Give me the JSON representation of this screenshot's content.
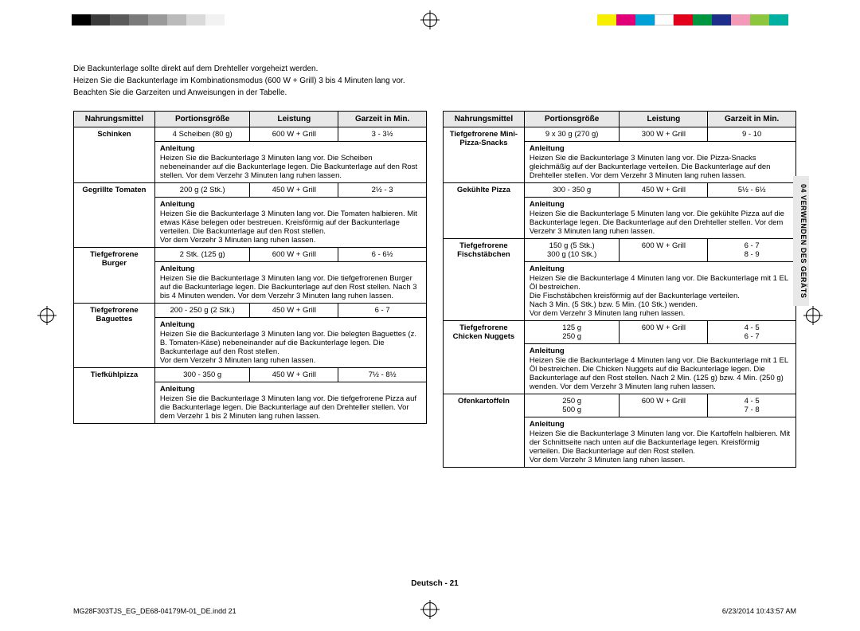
{
  "colorbar_left": [
    "#000000",
    "#3a3a3a",
    "#5a5a5a",
    "#7a7a7a",
    "#9a9a9a",
    "#bababa",
    "#dadada",
    "#f2f2f2"
  ],
  "colorbar_right": [
    "#f8ef00",
    "#e20079",
    "#00a1d6",
    "#ffffff",
    "#e2001a",
    "#009640",
    "#1d2e8a",
    "#f29ab8",
    "#8cc63f",
    "#00b0a0"
  ],
  "intro": [
    "Die Backunterlage sollte direkt auf dem Drehteller vorgeheizt werden.",
    "Heizen Sie die Backunterlage im Kombinationsmodus (600 W + Grill) 3 bis 4 Minuten lang vor.",
    "Beachten Sie die Garzeiten und Anweisungen in der Tabelle."
  ],
  "headers": {
    "food": "Nahrungsmittel",
    "portion": "Portionsgröße",
    "power": "Leistung",
    "time": "Garzeit in Min."
  },
  "instr_label": "Anleitung",
  "left_rows": [
    {
      "food": "Schinken",
      "portion": "4 Scheiben (80 g)",
      "power": "600 W + Grill",
      "time": "3 - 3½",
      "instr": "Heizen Sie die Backunterlage 3 Minuten lang vor. Die Scheiben nebeneinander auf die Backunterlage legen. Die Backunterlage auf den Rost stellen. Vor dem Verzehr 3 Minuten lang ruhen lassen."
    },
    {
      "food": "Gegrillte Tomaten",
      "portion": "200 g (2 Stk.)",
      "power": "450 W + Grill",
      "time": "2½ - 3",
      "instr": "Heizen Sie die Backunterlage 3 Minuten lang vor. Die Tomaten halbieren. Mit etwas Käse belegen oder bestreuen. Kreisförmig auf der Backunterlage verteilen. Die Backunterlage auf den Rost stellen.\nVor dem Verzehr 3 Minuten lang ruhen lassen."
    },
    {
      "food": "Tiefgefrorene Burger",
      "portion": "2 Stk. (125 g)",
      "power": "600 W + Grill",
      "time": "6 - 6½",
      "instr": "Heizen Sie die Backunterlage 3 Minuten lang vor. Die tiefgefrorenen Burger auf die Backunterlage legen. Die Backunterlage auf den Rost stellen. Nach 3 bis 4 Minuten wenden. Vor dem Verzehr 3 Minuten lang ruhen lassen."
    },
    {
      "food": "Tiefgefrorene Baguettes",
      "portion": "200 - 250 g (2 Stk.)",
      "power": "450 W + Grill",
      "time": "6 - 7",
      "instr": "Heizen Sie die Backunterlage 3 Minuten lang vor. Die belegten Baguettes (z. B. Tomaten-Käse) nebeneinander auf die Backunterlage legen. Die Backunterlage auf den Rost stellen.\nVor dem Verzehr 3 Minuten lang ruhen lassen."
    },
    {
      "food": "Tiefkühlpizza",
      "portion": "300 - 350 g",
      "power": "450 W + Grill",
      "time": "7½ - 8½",
      "instr": "Heizen Sie die Backunterlage 3 Minuten lang vor. Die tiefgefrorene Pizza auf die Backunterlage legen. Die Backunterlage auf den Drehteller stellen. Vor dem Verzehr 1 bis 2 Minuten lang ruhen lassen."
    }
  ],
  "right_rows": [
    {
      "food": "Tiefgefrorene Mini-Pizza-Snacks",
      "portion": "9 x 30 g (270 g)",
      "power": "300 W + Grill",
      "time": "9 - 10",
      "instr": "Heizen Sie die Backunterlage 3 Minuten lang vor. Die Pizza-Snacks gleichmäßig auf der Backunterlage verteilen. Die Backunterlage auf den Drehteller stellen. Vor dem Verzehr 3 Minuten lang ruhen lassen."
    },
    {
      "food": "Gekühlte Pizza",
      "portion": "300 - 350 g",
      "power": "450 W + Grill",
      "time": "5½ - 6½",
      "instr": "Heizen Sie die Backunterlage 5 Minuten lang vor. Die gekühlte Pizza auf die Backunterlage legen. Die Backunterlage auf den Drehteller stellen. Vor dem Verzehr 3 Minuten lang ruhen lassen."
    },
    {
      "food": "Tiefgefrorene Fischstäbchen",
      "portion": "150 g (5 Stk.)\n300 g (10 Stk.)",
      "power": "600 W + Grill",
      "time": "6 - 7\n8 - 9",
      "instr": "Heizen Sie die Backunterlage 4 Minuten lang vor. Die Backunterlage mit 1 EL Öl bestreichen.\nDie Fischstäbchen kreisförmig auf der Backunterlage verteilen.\nNach 3 Min. (5 Stk.) bzw. 5 Min. (10 Stk.) wenden.\nVor dem Verzehr 3 Minuten lang ruhen lassen."
    },
    {
      "food": "Tiefgefrorene Chicken Nuggets",
      "portion": "125 g\n250 g",
      "power": "600 W + Grill",
      "time": "4 - 5\n6 - 7",
      "instr": "Heizen Sie die Backunterlage 4 Minuten lang vor. Die Backunterlage mit 1 EL Öl bestreichen. Die Chicken Nuggets auf die Backunterlage legen. Die Backunterlage auf den Rost stellen. Nach 2 Min. (125 g) bzw. 4 Min. (250 g) wenden. Vor dem Verzehr 3 Minuten lang ruhen lassen."
    },
    {
      "food": "Ofenkartoffeln",
      "portion": "250 g\n500 g",
      "power": "600 W + Grill",
      "time": "4 - 5\n7 - 8",
      "instr": "Heizen Sie die Backunterlage 3 Minuten lang vor. Die Kartoffeln halbieren. Mit der Schnittseite nach unten auf die Backunterlage legen. Kreisförmig verteilen. Die Backunterlage auf den Rost stellen.\nVor dem Verzehr 3 Minuten lang ruhen lassen."
    }
  ],
  "side_tab": "04   VERWENDEN DES GERÄTS",
  "page_footer": "Deutsch - 21",
  "print_left": "MG28F303TJS_EG_DE68-04179M-01_DE.indd   21",
  "print_right": "6/23/2014   10:43:57 AM"
}
